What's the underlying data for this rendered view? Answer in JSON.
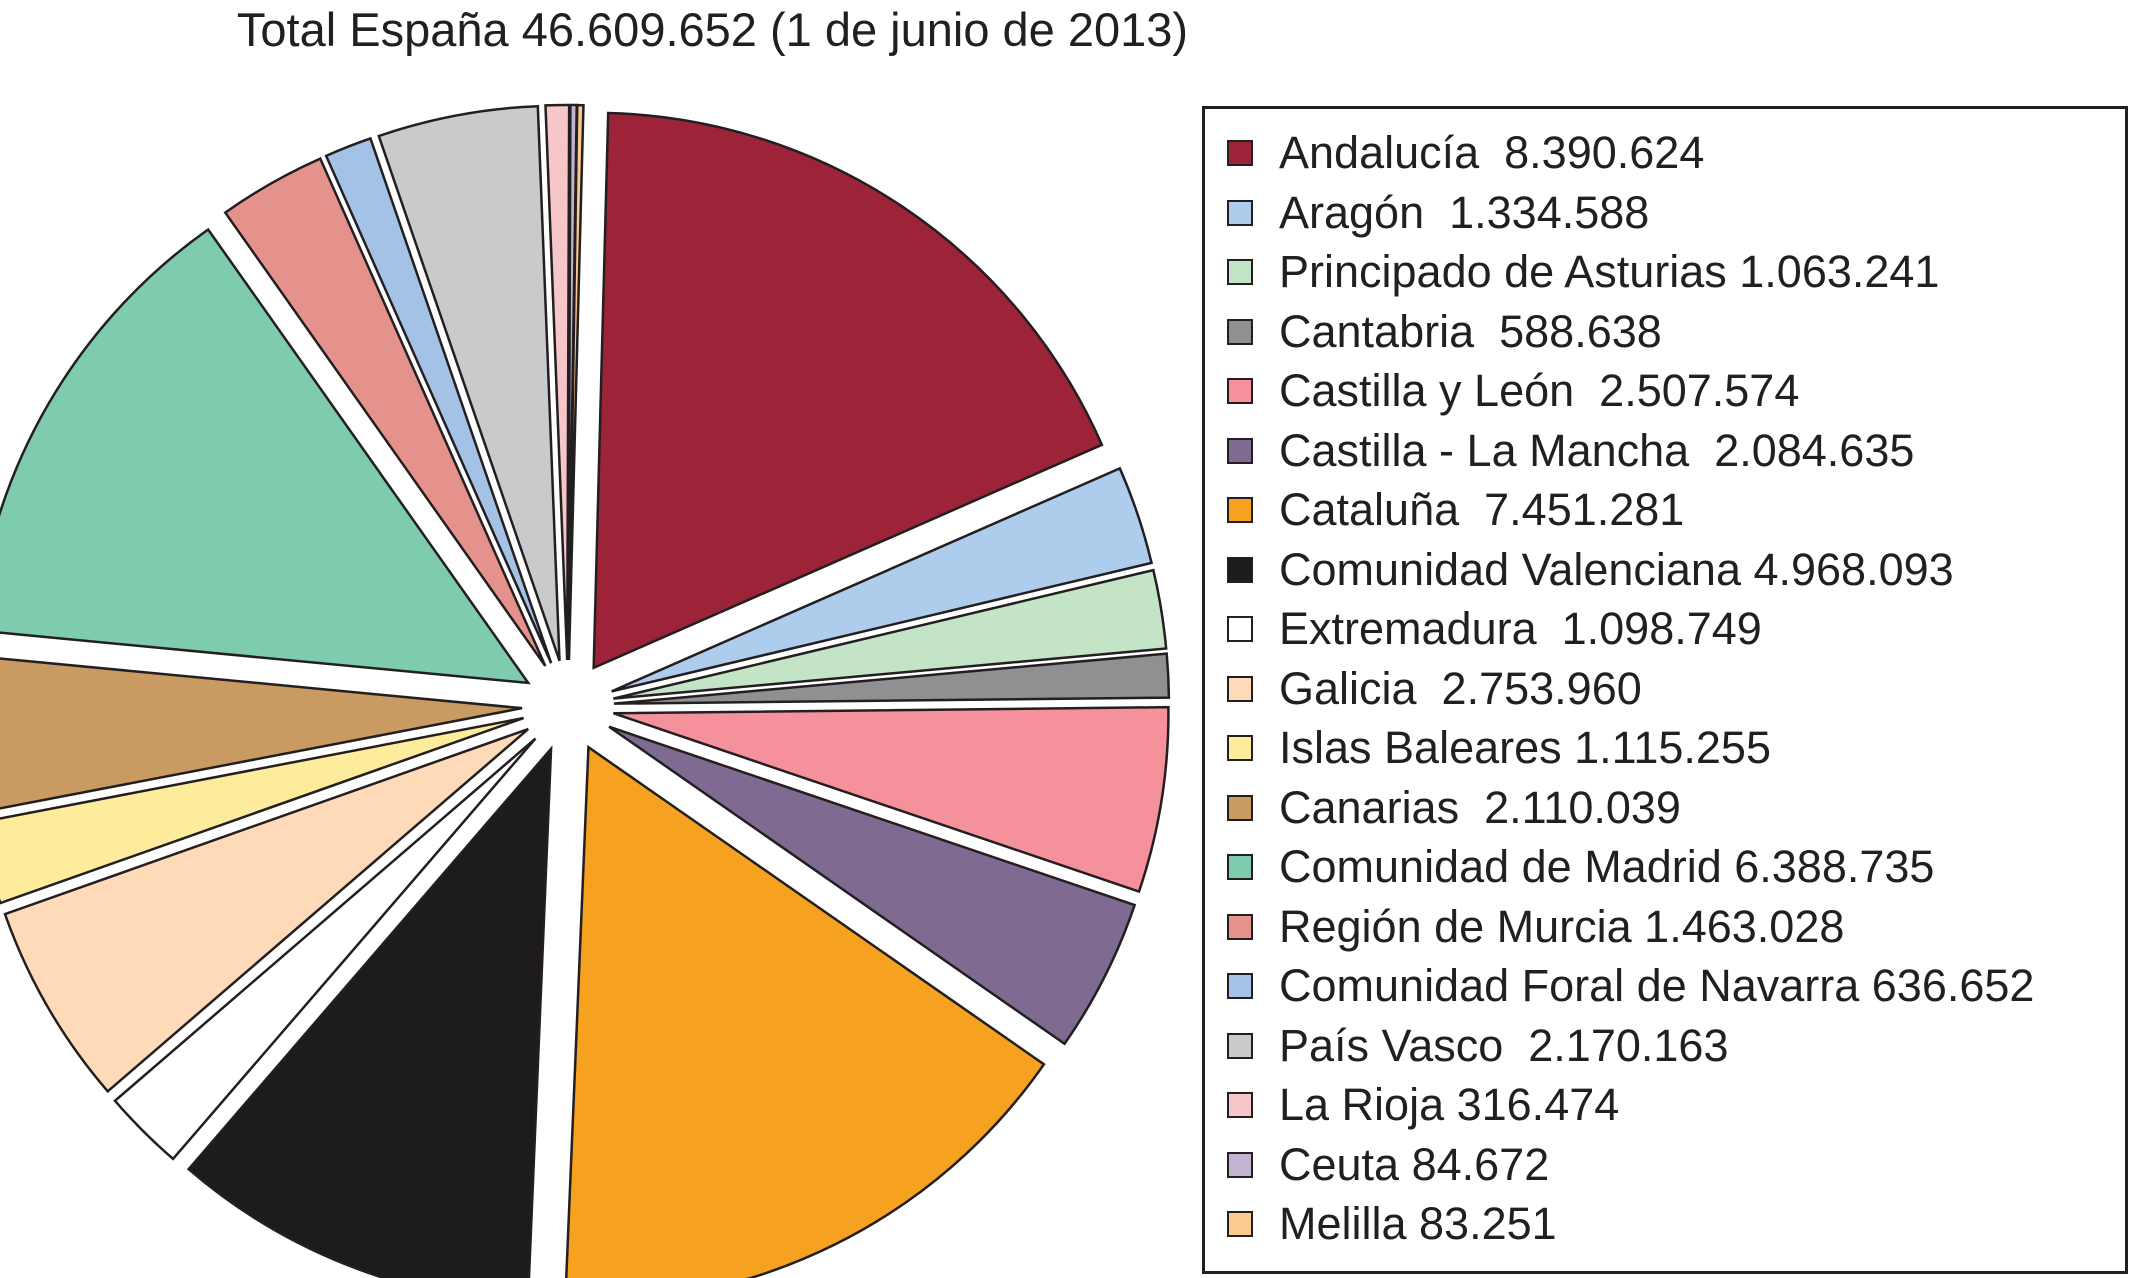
{
  "chart_data": {
    "type": "pie",
    "title": "Total España 46.609.652 (1 de junio de 2013)",
    "exploded": true,
    "legend_position": "right",
    "slices": [
      {
        "name": "Andalucía",
        "value": 8390624,
        "label": "Andalucía  8.390.624",
        "color": "#9c2338"
      },
      {
        "name": "Aragón",
        "value": 1334588,
        "label": "Aragón  1.334.588",
        "color": "#aecdec"
      },
      {
        "name": "Principado de Asturias",
        "value": 1063241,
        "label": "Principado de Asturias 1.063.241",
        "color": "#c3e4c6"
      },
      {
        "name": "Cantabria",
        "value": 588638,
        "label": "Cantabria  588.638",
        "color": "#8f9091"
      },
      {
        "name": "Castilla y León",
        "value": 2507574,
        "label": "Castilla y León  2.507.574",
        "color": "#f4919b"
      },
      {
        "name": "Castilla - La Mancha",
        "value": 2084635,
        "label": "Castilla - La Mancha  2.084.635",
        "color": "#7f6b92"
      },
      {
        "name": "Cataluña",
        "value": 7451281,
        "label": "Cataluña  7.451.281",
        "color": "#f6a11f"
      },
      {
        "name": "Comunidad Valenciana",
        "value": 4968093,
        "label": "Comunidad Valenciana 4.968.093",
        "color": "#1d1b1c"
      },
      {
        "name": "Extremadura",
        "value": 1098749,
        "label": "Extremadura  1.098.749",
        "color": "#ffffff"
      },
      {
        "name": "Galicia",
        "value": 2753960,
        "label": "Galicia  2.753.960",
        "color": "#fedab8"
      },
      {
        "name": "Islas Baleares",
        "value": 1115255,
        "label": "Islas Baleares 1.115.255",
        "color": "#fcec9c"
      },
      {
        "name": "Canarias",
        "value": 2110039,
        "label": "Canarias  2.110.039",
        "color": "#c99a62"
      },
      {
        "name": "Comunidad de Madrid",
        "value": 6388735,
        "label": "Comunidad de Madrid 6.388.735",
        "color": "#7ecbae"
      },
      {
        "name": "Región de Murcia",
        "value": 1463028,
        "label": "Región de Murcia 1.463.028",
        "color": "#e6928c"
      },
      {
        "name": "Comunidad Foral de Navarra",
        "value": 636652,
        "label": "Comunidad Foral de Navarra 636.652",
        "color": "#a4c2e6"
      },
      {
        "name": "País Vasco",
        "value": 2170163,
        "label": "País Vasco  2.170.163",
        "color": "#c9cacc"
      },
      {
        "name": "La Rioja",
        "value": 316474,
        "label": "La Rioja 316.474",
        "color": "#f7c6c8"
      },
      {
        "name": "Ceuta",
        "value": 84672,
        "label": "Ceuta 84.672",
        "color": "#c4b3d0"
      },
      {
        "name": "Melilla",
        "value": 83251,
        "label": "Melilla 83.251",
        "color": "#fcc98e"
      }
    ]
  }
}
